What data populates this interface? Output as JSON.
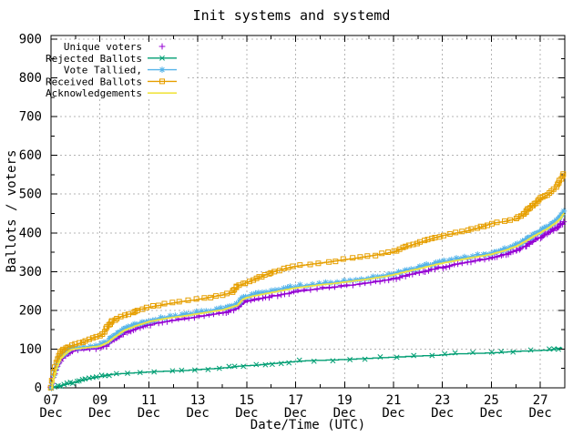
{
  "window": {
    "title": "Init systems and systemd"
  },
  "colors": {
    "background": "#ffffff",
    "grid": "#b4b4b4",
    "border": "#000000",
    "text": "#000000"
  },
  "chart_data": {
    "type": "line",
    "title": "Init systems and systemd",
    "xlabel": "Date/Time (UTC)",
    "ylabel": "Ballots / voters",
    "ylim": [
      0,
      900
    ],
    "y_tick_step": 100,
    "y_minor_step": 50,
    "grid": true,
    "legend_position": "top-left-inside",
    "x_range_days": [
      7,
      28
    ],
    "x_month": "Dec",
    "y_ticks": [
      {
        "v": 0,
        "label": "0"
      },
      {
        "v": 100,
        "label": "100"
      },
      {
        "v": 200,
        "label": "200"
      },
      {
        "v": 300,
        "label": "300"
      },
      {
        "v": 400,
        "label": "400"
      },
      {
        "v": 500,
        "label": "500"
      },
      {
        "v": 600,
        "label": "600"
      },
      {
        "v": 700,
        "label": "700"
      },
      {
        "v": 800,
        "label": "800"
      },
      {
        "v": 900,
        "label": "900"
      }
    ],
    "x_ticks": [
      {
        "day": 7,
        "line1": "07",
        "line2": "Dec"
      },
      {
        "day": 9,
        "line1": "09",
        "line2": "Dec"
      },
      {
        "day": 11,
        "line1": "11",
        "line2": "Dec"
      },
      {
        "day": 13,
        "line1": "13",
        "line2": "Dec"
      },
      {
        "day": 15,
        "line1": "15",
        "line2": "Dec"
      },
      {
        "day": 17,
        "line1": "17",
        "line2": "Dec"
      },
      {
        "day": 19,
        "line1": "19",
        "line2": "Dec"
      },
      {
        "day": 21,
        "line1": "21",
        "line2": "Dec"
      },
      {
        "day": 23,
        "line1": "23",
        "line2": "Dec"
      },
      {
        "day": 25,
        "line1": "25",
        "line2": "Dec"
      },
      {
        "day": 27,
        "line1": "27",
        "line2": "Dec"
      }
    ],
    "series": [
      {
        "name": "Unique voters",
        "color": "#9400d3",
        "marker": "plus",
        "legend_line": false,
        "points": [
          [
            7.0,
            0
          ],
          [
            7.05,
            12
          ],
          [
            7.1,
            26
          ],
          [
            7.2,
            46
          ],
          [
            7.3,
            61
          ],
          [
            7.4,
            72
          ],
          [
            7.55,
            82
          ],
          [
            7.7,
            89
          ],
          [
            7.8,
            93
          ],
          [
            8.0,
            96
          ],
          [
            8.5,
            99
          ],
          [
            9.0,
            102
          ],
          [
            9.3,
            111
          ],
          [
            9.6,
            126
          ],
          [
            10.0,
            142
          ],
          [
            10.5,
            153
          ],
          [
            11.0,
            163
          ],
          [
            11.5,
            169
          ],
          [
            12.0,
            174
          ],
          [
            12.5,
            178
          ],
          [
            13.0,
            183
          ],
          [
            13.5,
            188
          ],
          [
            14.0,
            193
          ],
          [
            14.6,
            205
          ],
          [
            14.8,
            218
          ],
          [
            15.0,
            223
          ],
          [
            15.5,
            229
          ],
          [
            16.0,
            236
          ],
          [
            16.5,
            242
          ],
          [
            17.0,
            248
          ],
          [
            17.5,
            252
          ],
          [
            18.0,
            256
          ],
          [
            18.5,
            259
          ],
          [
            19.0,
            263
          ],
          [
            19.5,
            267
          ],
          [
            20.0,
            271
          ],
          [
            20.5,
            276
          ],
          [
            21.0,
            282
          ],
          [
            21.5,
            290
          ],
          [
            22.0,
            297
          ],
          [
            22.5,
            305
          ],
          [
            23.0,
            312
          ],
          [
            23.5,
            318
          ],
          [
            24.0,
            324
          ],
          [
            24.5,
            329
          ],
          [
            25.0,
            335
          ],
          [
            25.5,
            344
          ],
          [
            26.0,
            354
          ],
          [
            26.4,
            367
          ],
          [
            26.7,
            379
          ],
          [
            27.0,
            389
          ],
          [
            27.3,
            399
          ],
          [
            27.6,
            411
          ],
          [
            27.8,
            419
          ],
          [
            27.95,
            427
          ]
        ]
      },
      {
        "name": "Rejected Ballots",
        "color": "#009e73",
        "marker": "cross",
        "legend_line": true,
        "points": [
          [
            7.0,
            0
          ],
          [
            7.3,
            4
          ],
          [
            7.6,
            9
          ],
          [
            8.0,
            15
          ],
          [
            8.3,
            20
          ],
          [
            8.7,
            26
          ],
          [
            9.0,
            29
          ],
          [
            9.3,
            33
          ],
          [
            9.7,
            36
          ],
          [
            10.0,
            37
          ],
          [
            10.5,
            39
          ],
          [
            11.0,
            41
          ],
          [
            11.8,
            43
          ],
          [
            12.5,
            45
          ],
          [
            13.0,
            47
          ],
          [
            13.8,
            50
          ],
          [
            14.3,
            53
          ],
          [
            14.7,
            56
          ],
          [
            15.3,
            58
          ],
          [
            15.8,
            61
          ],
          [
            16.3,
            64
          ],
          [
            17.0,
            68
          ],
          [
            17.5,
            70
          ],
          [
            18.5,
            72
          ],
          [
            19.0,
            73
          ],
          [
            20.0,
            76
          ],
          [
            20.6,
            78
          ],
          [
            21.3,
            80
          ],
          [
            22.0,
            82
          ],
          [
            22.8,
            84
          ],
          [
            23.2,
            86
          ],
          [
            23.6,
            88
          ],
          [
            24.5,
            89
          ],
          [
            25.0,
            90
          ],
          [
            25.5,
            92
          ],
          [
            26.0,
            94
          ],
          [
            26.8,
            96
          ],
          [
            27.3,
            97
          ],
          [
            27.6,
            100
          ],
          [
            27.9,
            103
          ]
        ]
      },
      {
        "name": "Vote Tallied,",
        "color": "#56b4e9",
        "marker": "asterisk",
        "legend_line": true,
        "points": [
          [
            7.0,
            0
          ],
          [
            7.05,
            15
          ],
          [
            7.1,
            30
          ],
          [
            7.2,
            52
          ],
          [
            7.3,
            68
          ],
          [
            7.4,
            80
          ],
          [
            7.55,
            90
          ],
          [
            7.7,
            97
          ],
          [
            7.8,
            101
          ],
          [
            8.0,
            104
          ],
          [
            8.5,
            107
          ],
          [
            9.0,
            111
          ],
          [
            9.3,
            120
          ],
          [
            9.6,
            135
          ],
          [
            10.0,
            152
          ],
          [
            10.5,
            164
          ],
          [
            11.0,
            174
          ],
          [
            11.5,
            180
          ],
          [
            12.0,
            185
          ],
          [
            12.5,
            189
          ],
          [
            13.0,
            194
          ],
          [
            13.5,
            199
          ],
          [
            14.0,
            204
          ],
          [
            14.6,
            216
          ],
          [
            14.8,
            230
          ],
          [
            15.0,
            236
          ],
          [
            15.5,
            243
          ],
          [
            16.0,
            249
          ],
          [
            16.5,
            255
          ],
          [
            17.0,
            261
          ],
          [
            17.5,
            265
          ],
          [
            18.0,
            269
          ],
          [
            18.5,
            272
          ],
          [
            19.0,
            276
          ],
          [
            19.5,
            280
          ],
          [
            20.0,
            284
          ],
          [
            20.5,
            289
          ],
          [
            21.0,
            295
          ],
          [
            21.5,
            303
          ],
          [
            22.0,
            310
          ],
          [
            22.5,
            318
          ],
          [
            23.0,
            325
          ],
          [
            23.5,
            331
          ],
          [
            24.0,
            337
          ],
          [
            24.5,
            342
          ],
          [
            25.0,
            348
          ],
          [
            25.5,
            357
          ],
          [
            26.0,
            368
          ],
          [
            26.4,
            382
          ],
          [
            26.7,
            394
          ],
          [
            27.0,
            404
          ],
          [
            27.3,
            415
          ],
          [
            27.6,
            428
          ],
          [
            27.8,
            440
          ],
          [
            27.95,
            455
          ]
        ]
      },
      {
        "name": "Received Ballots",
        "color": "#e69f00",
        "marker": "square",
        "legend_line": true,
        "points": [
          [
            7.0,
            0
          ],
          [
            7.04,
            20
          ],
          [
            7.1,
            40
          ],
          [
            7.2,
            65
          ],
          [
            7.3,
            82
          ],
          [
            7.4,
            93
          ],
          [
            7.5,
            100
          ],
          [
            7.7,
            106
          ],
          [
            8.0,
            112
          ],
          [
            8.3,
            118
          ],
          [
            8.6,
            126
          ],
          [
            8.8,
            131
          ],
          [
            9.0,
            135
          ],
          [
            9.15,
            140
          ],
          [
            9.3,
            158
          ],
          [
            9.5,
            172
          ],
          [
            9.7,
            180
          ],
          [
            10.0,
            187
          ],
          [
            10.3,
            192
          ],
          [
            10.5,
            200
          ],
          [
            10.8,
            205
          ],
          [
            11.0,
            208
          ],
          [
            11.5,
            214
          ],
          [
            12.0,
            219
          ],
          [
            12.5,
            224
          ],
          [
            13.0,
            228
          ],
          [
            13.5,
            234
          ],
          [
            14.0,
            240
          ],
          [
            14.4,
            246
          ],
          [
            14.6,
            262
          ],
          [
            15.0,
            272
          ],
          [
            15.5,
            285
          ],
          [
            16.0,
            298
          ],
          [
            16.5,
            307
          ],
          [
            17.0,
            314
          ],
          [
            17.5,
            318
          ],
          [
            18.0,
            322
          ],
          [
            18.5,
            326
          ],
          [
            19.0,
            331
          ],
          [
            19.5,
            335
          ],
          [
            20.0,
            340
          ],
          [
            20.5,
            345
          ],
          [
            21.0,
            351
          ],
          [
            21.5,
            364
          ],
          [
            22.0,
            374
          ],
          [
            22.5,
            384
          ],
          [
            23.0,
            393
          ],
          [
            23.5,
            399
          ],
          [
            24.0,
            405
          ],
          [
            24.5,
            414
          ],
          [
            25.0,
            424
          ],
          [
            25.5,
            429
          ],
          [
            26.0,
            436
          ],
          [
            26.3,
            447
          ],
          [
            26.6,
            466
          ],
          [
            27.0,
            489
          ],
          [
            27.3,
            499
          ],
          [
            27.6,
            514
          ],
          [
            27.8,
            534
          ],
          [
            27.95,
            552
          ]
        ]
      },
      {
        "name": "Acknowledgements",
        "color": "#f0e442",
        "marker": "none",
        "legend_line": true,
        "points": [
          [
            7.0,
            0
          ],
          [
            7.05,
            12
          ],
          [
            7.1,
            27
          ],
          [
            7.2,
            49
          ],
          [
            7.3,
            65
          ],
          [
            7.4,
            77
          ],
          [
            7.55,
            87
          ],
          [
            7.7,
            94
          ],
          [
            7.8,
            98
          ],
          [
            8.0,
            101
          ],
          [
            8.5,
            104
          ],
          [
            9.0,
            108
          ],
          [
            9.3,
            117
          ],
          [
            9.6,
            132
          ],
          [
            10.0,
            149
          ],
          [
            10.5,
            161
          ],
          [
            11.0,
            171
          ],
          [
            11.5,
            177
          ],
          [
            12.0,
            182
          ],
          [
            12.5,
            186
          ],
          [
            13.0,
            191
          ],
          [
            13.5,
            196
          ],
          [
            14.0,
            201
          ],
          [
            14.6,
            213
          ],
          [
            14.8,
            227
          ],
          [
            15.0,
            233
          ],
          [
            15.5,
            240
          ],
          [
            16.0,
            246
          ],
          [
            16.5,
            252
          ],
          [
            17.0,
            258
          ],
          [
            17.5,
            262
          ],
          [
            18.0,
            266
          ],
          [
            18.5,
            269
          ],
          [
            19.0,
            273
          ],
          [
            19.5,
            277
          ],
          [
            20.0,
            281
          ],
          [
            20.5,
            286
          ],
          [
            21.0,
            292
          ],
          [
            21.5,
            300
          ],
          [
            22.0,
            307
          ],
          [
            22.5,
            315
          ],
          [
            23.0,
            322
          ],
          [
            23.5,
            328
          ],
          [
            24.0,
            334
          ],
          [
            24.5,
            339
          ],
          [
            25.0,
            345
          ],
          [
            25.5,
            354
          ],
          [
            26.0,
            365
          ],
          [
            26.4,
            379
          ],
          [
            26.7,
            391
          ],
          [
            27.0,
            401
          ],
          [
            27.3,
            412
          ],
          [
            27.6,
            425
          ],
          [
            27.8,
            437
          ],
          [
            27.95,
            452
          ]
        ]
      }
    ]
  }
}
